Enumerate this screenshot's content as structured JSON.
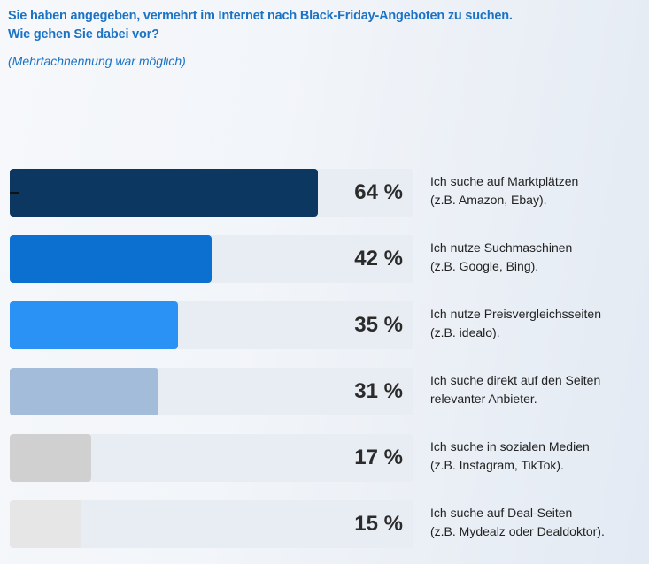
{
  "header": {
    "title_line1": "Sie haben angegeben, vermehrt im Internet nach Black-Friday-Angeboten zu suchen.",
    "title_line2": "Wie gehen Sie dabei vor?",
    "note": "(Mehrfachnennung war möglich)"
  },
  "chart_data": {
    "type": "bar",
    "orientation": "horizontal",
    "title": "Sie haben angegeben, vermehrt im Internet nach Black-Friday-Angeboten zu suchen. Wie gehen Sie dabei vor?",
    "subtitle": "(Mehrfachnennung war möglich)",
    "unit": "%",
    "xlim": [
      0,
      100
    ],
    "grid": false,
    "categories": [
      {
        "line1": "Ich suche auf Marktplätzen",
        "line2": "(z.B. Amazon, Ebay)."
      },
      {
        "line1": "Ich nutze Suchmaschinen",
        "line2": "(z.B. Google, Bing)."
      },
      {
        "line1": "Ich nutze Preisvergleichsseiten",
        "line2": "(z.B. idealo)."
      },
      {
        "line1": "Ich suche direkt auf den Seiten",
        "line2": "relevanter Anbieter."
      },
      {
        "line1": "Ich suche in sozialen Medien",
        "line2": "(z.B. Instagram, TikTok)."
      },
      {
        "line1": "Ich suche auf Deal-Seiten",
        "line2": "(z.B. Mydealz oder Dealdoktor)."
      }
    ],
    "values": [
      64,
      42,
      35,
      31,
      17,
      15
    ],
    "value_labels": [
      "64 %",
      "42 %",
      "35 %",
      "31 %",
      "17 %",
      "15 %"
    ],
    "colors": [
      "#0b3761",
      "#0b70d0",
      "#2a92f5",
      "#a2bcd9",
      "#d0d0d0",
      "#e6e6e6"
    ]
  },
  "colors": {
    "title": "#1c73c4",
    "track": "#e8edf4",
    "text": "#222222"
  }
}
